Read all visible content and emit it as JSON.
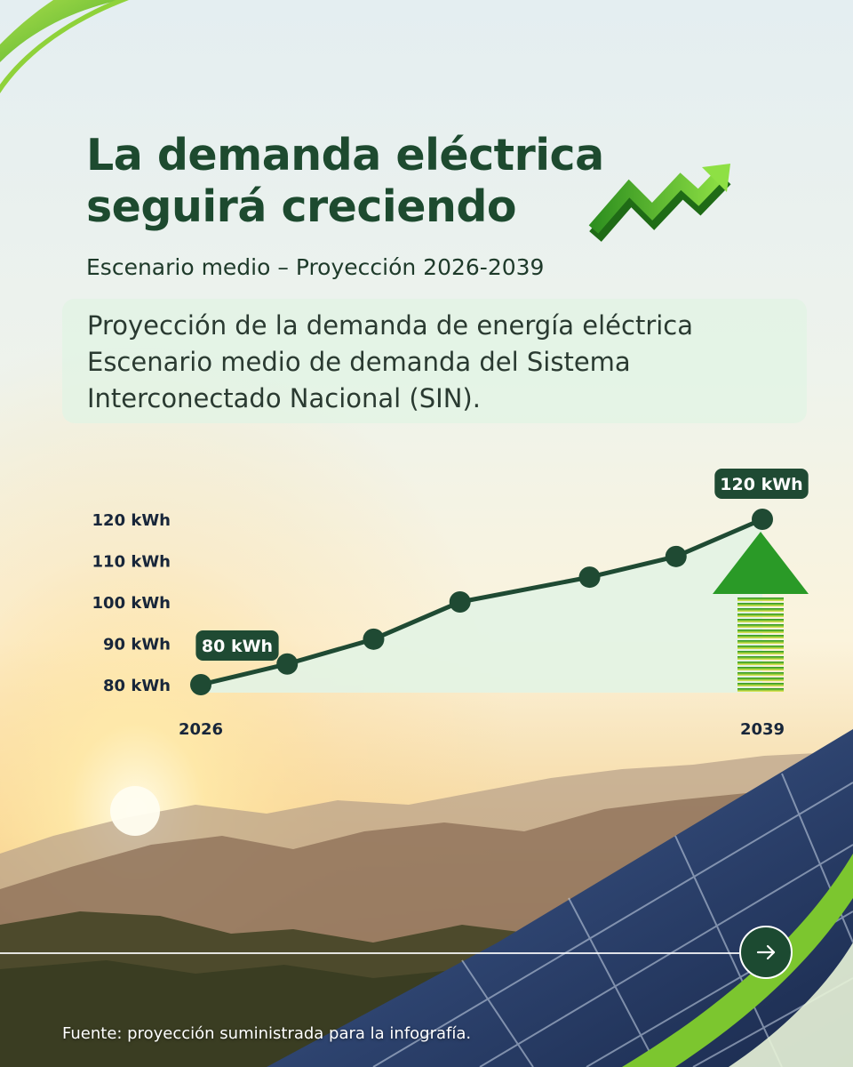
{
  "title_lines": [
    "La demanda eléctrica",
    "seguirá creciendo"
  ],
  "subtitle": "Escenario medio – Proyección 2026-2039",
  "info_lines": [
    "Proyección de la demanda de energía eléctrica",
    "Escenario medio de demanda del Sistema",
    "Interconectado Nacional (SIN)."
  ],
  "chart_data": {
    "type": "line",
    "x": [
      2026,
      2028,
      2030,
      2032,
      2035,
      2037,
      2039
    ],
    "values": [
      80,
      85,
      91,
      100,
      106,
      111,
      120
    ],
    "xtick_labels": [
      "2026",
      "2039"
    ],
    "yticks": [
      80,
      90,
      100,
      110,
      120
    ],
    "ytick_labels": [
      "80 kWh",
      "90 kWh",
      "100 kWh",
      "110 kWh",
      "120 kWh"
    ],
    "ylim": [
      80,
      120
    ],
    "xlim": [
      2026,
      2039
    ],
    "data_labels": [
      {
        "x": 2026,
        "text": "80 kWh"
      },
      {
        "x": 2039,
        "text": "120 kWh"
      }
    ],
    "line_color": "#1f4a33",
    "fill_color": "#e3f3e4",
    "grid": false
  },
  "footer": {
    "source": "Fuente: proyección suministrada para la infografía."
  },
  "icons": {
    "trend_arrow": "green-zigzag-up-arrow-icon",
    "growth_arrow": "green-up-arrow-icon",
    "next": "arrow-right-icon"
  }
}
